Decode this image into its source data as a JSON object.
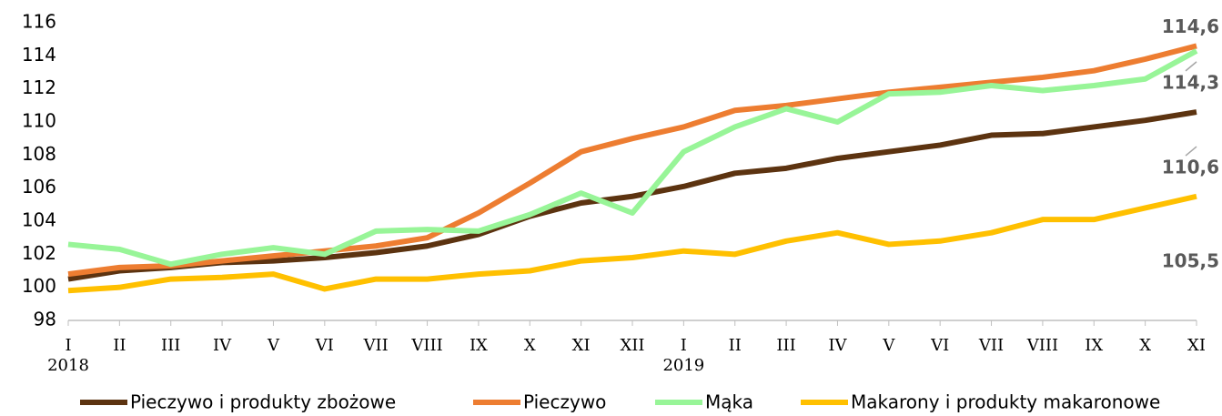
{
  "chart_data": {
    "type": "line",
    "categories": [
      "I",
      "II",
      "III",
      "IV",
      "V",
      "VI",
      "VII",
      "VIII",
      "IX",
      "X",
      "XI",
      "XII",
      "I",
      "II",
      "III",
      "IV",
      "V",
      "VI",
      "VII",
      "VIII",
      "IX",
      "X",
      "XI"
    ],
    "years": [
      {
        "label": "2018",
        "start": 0
      },
      {
        "label": "2019",
        "start": 12
      }
    ],
    "ylim": [
      98,
      116
    ],
    "yticks": [
      98,
      100,
      102,
      104,
      106,
      108,
      110,
      112,
      114,
      116
    ],
    "grid": false,
    "legend": "bottom",
    "series": [
      {
        "name": "Pieczywo i produkty zbożowe",
        "color": "#5c3310",
        "values": [
          100.5,
          101.0,
          101.2,
          101.5,
          101.6,
          101.8,
          102.1,
          102.5,
          103.2,
          104.3,
          105.1,
          105.5,
          106.1,
          106.9,
          107.2,
          107.8,
          108.2,
          108.6,
          109.2,
          109.3,
          109.7,
          110.1,
          110.6
        ],
        "value_labels": [
          null,
          null,
          null,
          null,
          null,
          null,
          null,
          null,
          null,
          null,
          null,
          null,
          null,
          null,
          null,
          null,
          null,
          null,
          null,
          null,
          null,
          null,
          "110,6"
        ]
      },
      {
        "name": "Pieczywo",
        "color": "#ed7d31",
        "values": [
          100.8,
          101.2,
          101.3,
          101.6,
          101.9,
          102.2,
          102.5,
          103.0,
          104.5,
          106.3,
          108.2,
          109.0,
          109.7,
          110.7,
          111.0,
          111.4,
          111.8,
          112.1,
          112.4,
          112.7,
          113.1,
          113.8,
          114.6
        ],
        "value_labels": [
          null,
          null,
          null,
          null,
          null,
          null,
          null,
          null,
          null,
          null,
          null,
          null,
          null,
          null,
          null,
          null,
          null,
          null,
          null,
          null,
          null,
          null,
          "114,6"
        ]
      },
      {
        "name": "Mąka",
        "color": "#98f598",
        "values": [
          102.6,
          102.3,
          101.4,
          102.0,
          102.4,
          102.0,
          103.4,
          103.5,
          103.4,
          104.4,
          105.7,
          104.5,
          108.2,
          109.7,
          110.8,
          110.0,
          111.7,
          111.8,
          112.2,
          111.9,
          112.2,
          112.6,
          114.3
        ],
        "value_labels": [
          null,
          null,
          null,
          null,
          null,
          null,
          null,
          null,
          null,
          null,
          null,
          null,
          null,
          null,
          null,
          null,
          null,
          null,
          null,
          null,
          null,
          null,
          "114,3"
        ]
      },
      {
        "name": "Makarony i produkty makaronowe",
        "color": "#ffc000",
        "values": [
          99.8,
          100.0,
          100.5,
          100.6,
          100.8,
          99.9,
          100.5,
          100.5,
          100.8,
          101.0,
          101.6,
          101.8,
          102.2,
          102.0,
          102.8,
          103.3,
          102.6,
          102.8,
          103.3,
          104.1,
          104.1,
          104.8,
          105.5
        ],
        "value_labels": [
          null,
          null,
          null,
          null,
          null,
          null,
          null,
          null,
          null,
          null,
          null,
          null,
          null,
          null,
          null,
          null,
          null,
          null,
          null,
          null,
          null,
          null,
          "105,5"
        ]
      }
    ]
  }
}
